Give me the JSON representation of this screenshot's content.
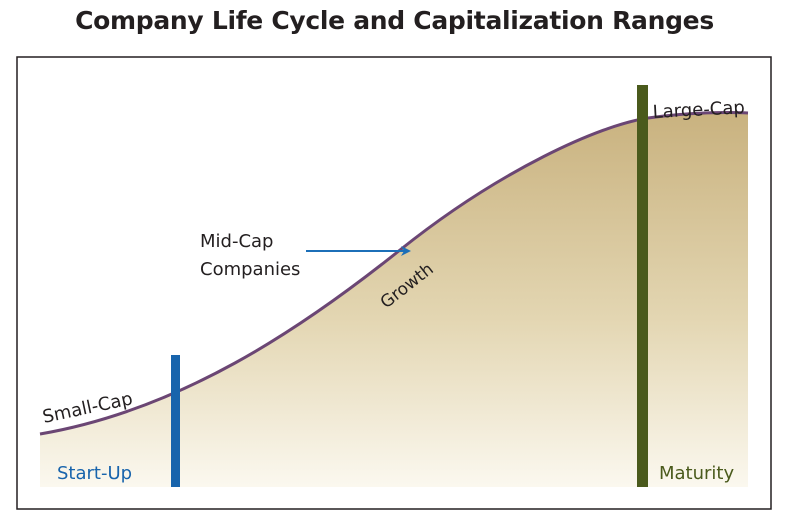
{
  "title": "Company Life Cycle and Capitalization Ranges",
  "curve_labels": {
    "small_cap": "Small-Cap",
    "growth": "Growth",
    "large_cap": "Large-Cap"
  },
  "callout": {
    "line1": "Mid-Cap",
    "line2": "Companies"
  },
  "stage_labels": {
    "start_up": "Start-Up",
    "maturity": "Maturity"
  },
  "colors": {
    "curve": "#6b4674",
    "start_up_marker": "#1864ac",
    "maturity_marker": "#4a5a1c",
    "arrow": "#1c6fb8",
    "fill_top": "#c9b27f",
    "fill_bottom": "#fbf8ef",
    "frame": "#231f20"
  }
}
